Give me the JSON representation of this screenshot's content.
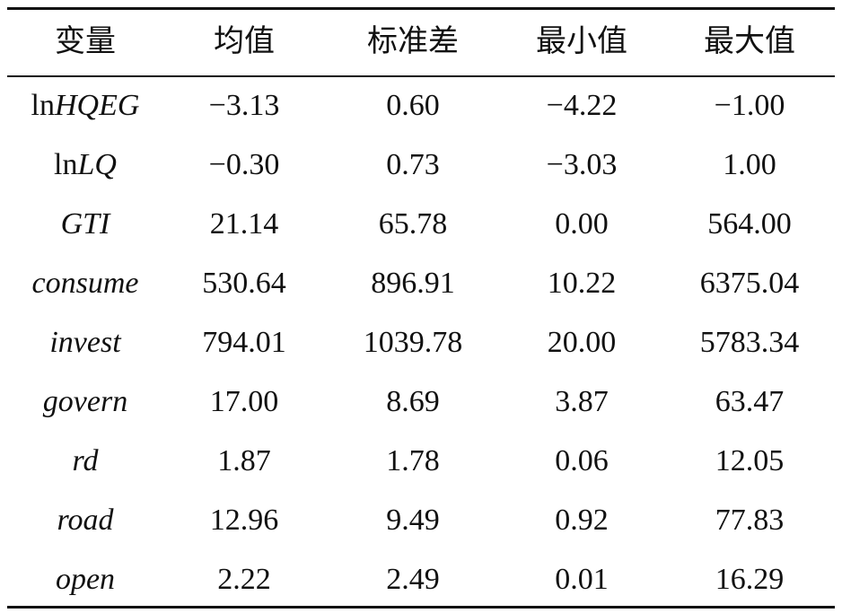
{
  "table": {
    "header": [
      "变量",
      "均值",
      "标准差",
      "最小值",
      "最大值"
    ],
    "rows": [
      {
        "variable": [
          {
            "text": "ln",
            "italic": false
          },
          {
            "text": "HQEG",
            "italic": true
          }
        ],
        "cells": [
          "−3.13",
          "0.60",
          "−4.22",
          "−1.00"
        ]
      },
      {
        "variable": [
          {
            "text": "ln",
            "italic": false
          },
          {
            "text": "LQ",
            "italic": true
          }
        ],
        "cells": [
          "−0.30",
          "0.73",
          "−3.03",
          "1.00"
        ]
      },
      {
        "variable": [
          {
            "text": "GTI",
            "italic": true
          }
        ],
        "cells": [
          "21.14",
          "65.78",
          "0.00",
          "564.00"
        ]
      },
      {
        "variable": [
          {
            "text": "consume",
            "italic": true
          }
        ],
        "cells": [
          "530.64",
          "896.91",
          "10.22",
          "6375.04"
        ]
      },
      {
        "variable": [
          {
            "text": "invest",
            "italic": true
          }
        ],
        "cells": [
          "794.01",
          "1039.78",
          "20.00",
          "5783.34"
        ]
      },
      {
        "variable": [
          {
            "text": "govern",
            "italic": true
          }
        ],
        "cells": [
          "17.00",
          "8.69",
          "3.87",
          "63.47"
        ]
      },
      {
        "variable": [
          {
            "text": "rd",
            "italic": true
          }
        ],
        "cells": [
          "1.87",
          "1.78",
          "0.06",
          "12.05"
        ]
      },
      {
        "variable": [
          {
            "text": "road",
            "italic": true
          }
        ],
        "cells": [
          "12.96",
          "9.49",
          "0.92",
          "77.83"
        ]
      },
      {
        "variable": [
          {
            "text": "open",
            "italic": true
          }
        ],
        "cells": [
          "2.22",
          "2.49",
          "0.01",
          "16.29"
        ]
      }
    ]
  }
}
